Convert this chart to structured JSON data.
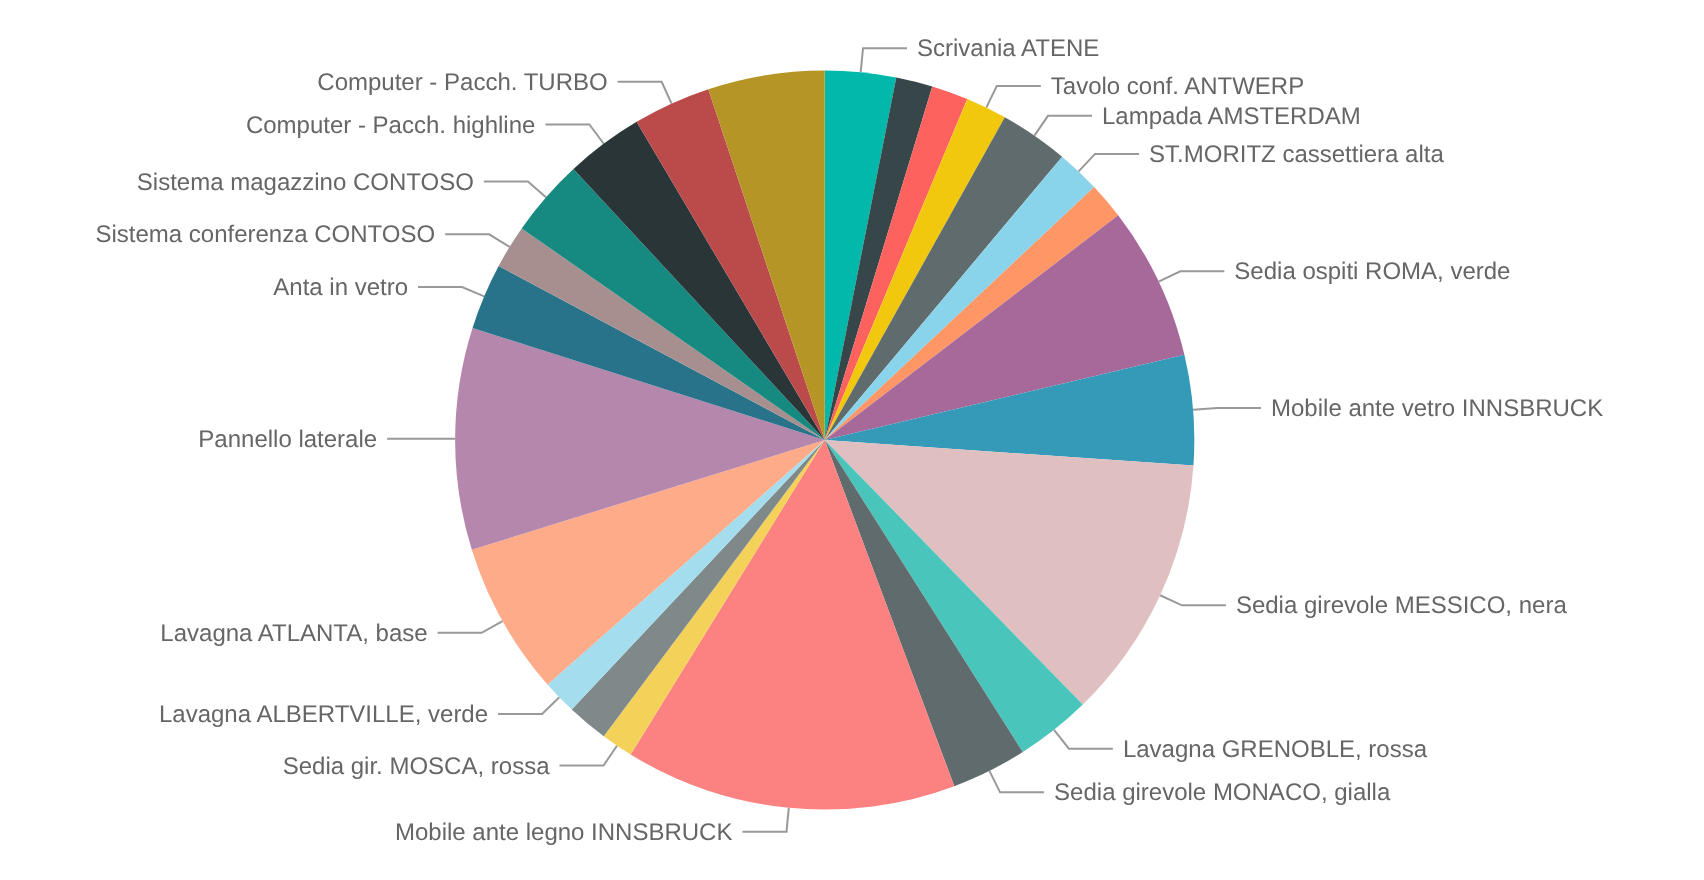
{
  "chart_data": {
    "type": "pie",
    "legend": false,
    "categories": [
      "Scrivania ATENE",
      null,
      null,
      "Tavolo conf. ANTWERP",
      "Lampada AMSTERDAM",
      "ST.MORITZ cassettiera alta",
      null,
      "Sedia ospiti ROMA, verde",
      "Mobile ante vetro INNSBRUCK",
      "Sedia girevole MESSICO, nera",
      "Lavagna GRENOBLE, rossa",
      "Sedia girevole MONACO, gialla",
      "Mobile ante legno INNSBRUCK",
      "Sedia gir. MOSCA, rossa",
      null,
      "Lavagna ALBERTVILLE, verde",
      "Lavagna ATLANTA, base",
      "Pannello laterale",
      "Anta in vetro",
      "Sistema conferenza CONTOSO",
      "Sistema magazzino CONTOSO",
      "Computer - Pacch. highline",
      "Computer - Pacch. TURBO",
      null
    ],
    "values": [
      3.1,
      1.6,
      1.6,
      1.8,
      3.0,
      1.9,
      1.6,
      6.7,
      4.8,
      11.6,
      3.3,
      3.3,
      14.5,
      1.4,
      1.8,
      1.5,
      6.7,
      9.7,
      2.9,
      1.9,
      3.4,
      3.4,
      3.4,
      5.1
    ],
    "colors": [
      "#01b8aa",
      "#374649",
      "#fd625e",
      "#f2c80f",
      "#5f6b6d",
      "#8ad4eb",
      "#fe9666",
      "#a66999",
      "#3599b8",
      "#dfbfbf",
      "#4ac5bb",
      "#5f6b6d",
      "#fb8281",
      "#f4d25a",
      "#7f898a",
      "#a4ddee",
      "#fdab89",
      "#b687ac",
      "#28738a",
      "#a78f8f",
      "#168980",
      "#293537",
      "#bb4a4a",
      "#b59525"
    ]
  }
}
